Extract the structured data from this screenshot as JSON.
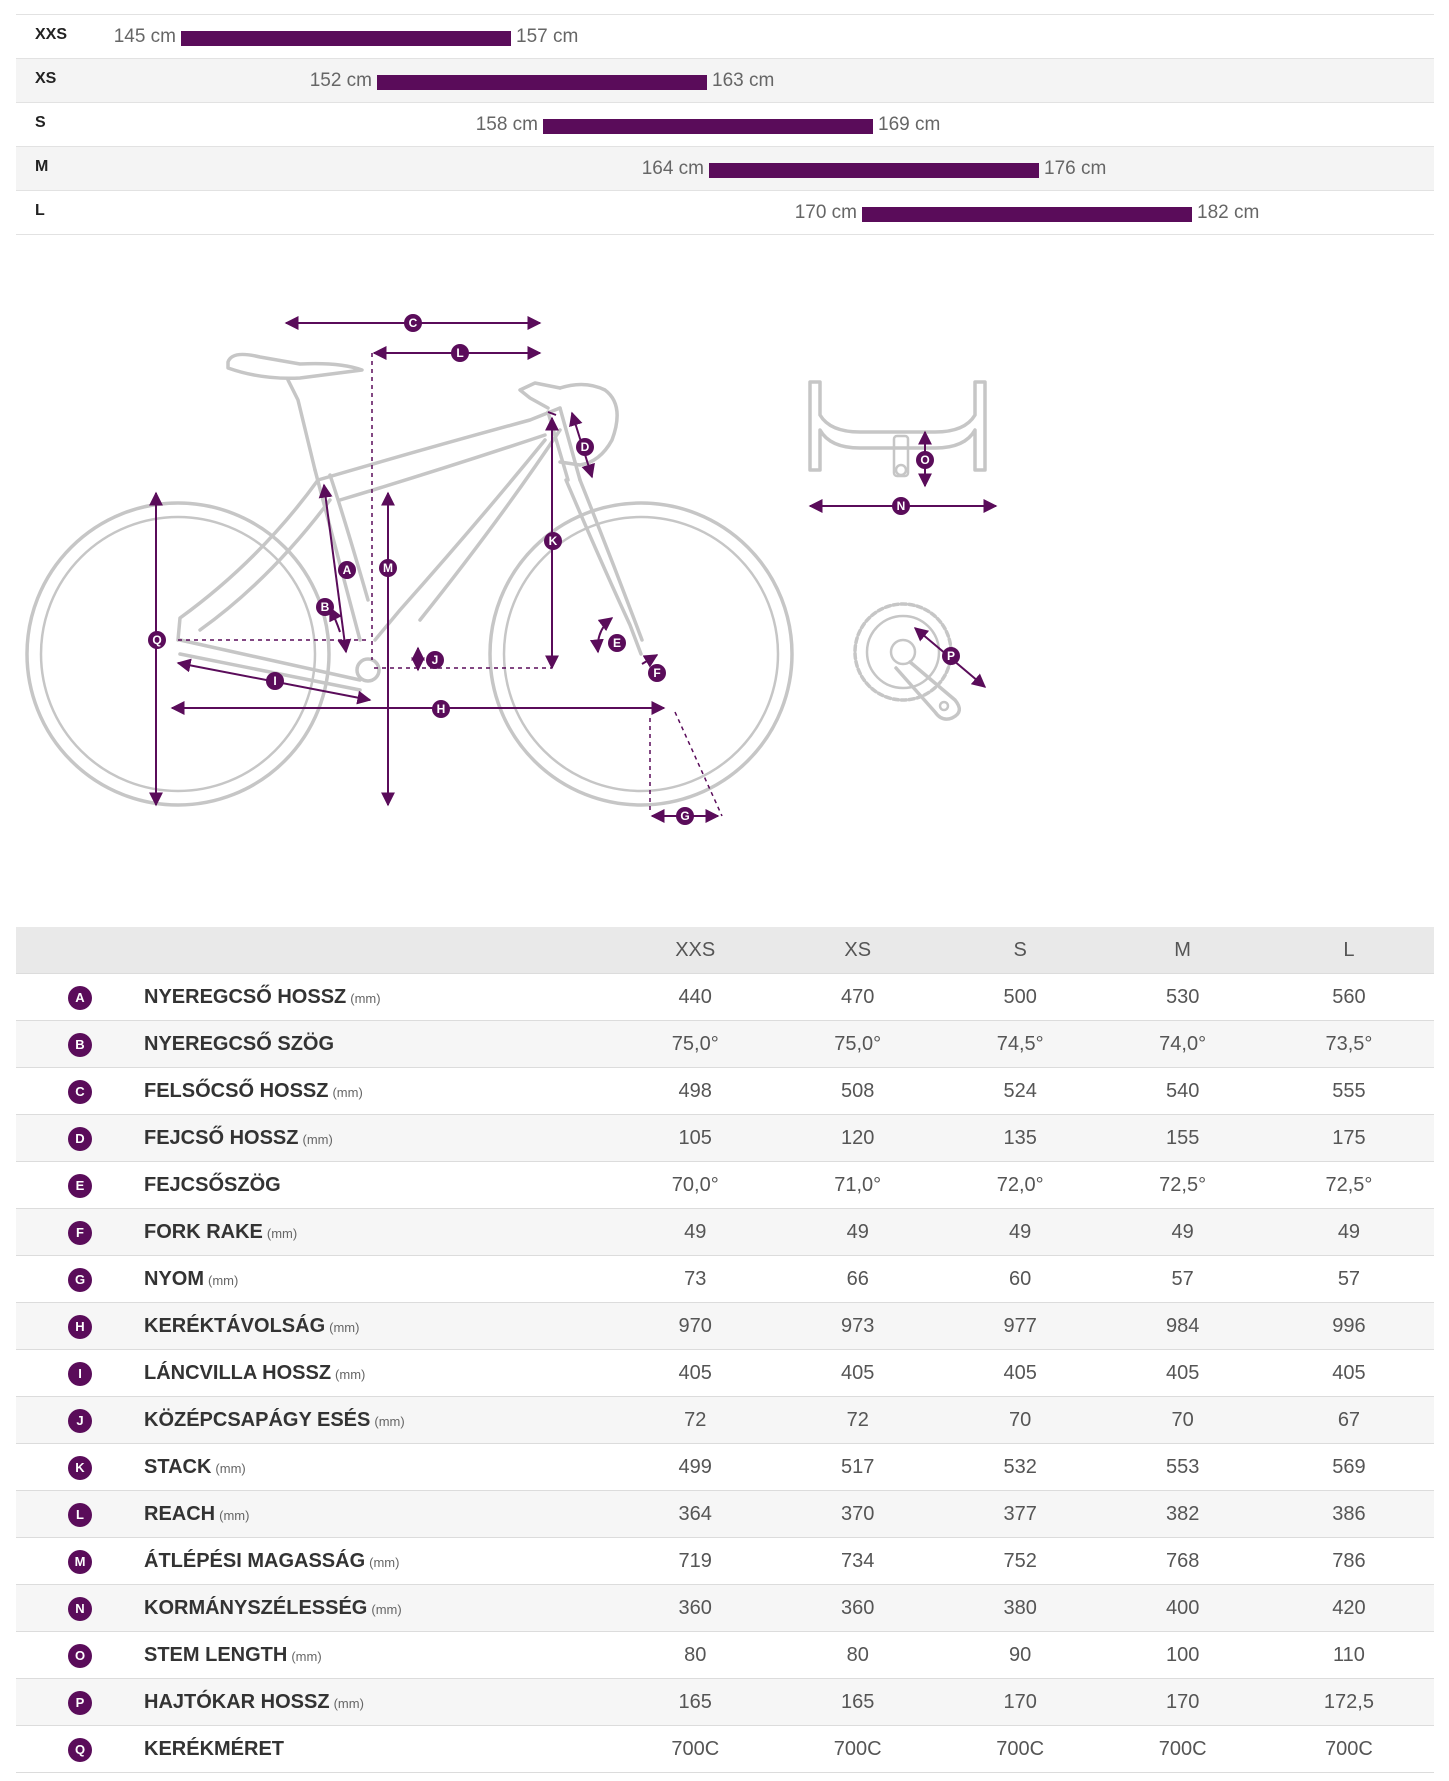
{
  "size_chart": [
    {
      "size": "XXS",
      "min_label": "145 cm",
      "max_label": "157 cm",
      "min_cm": 145,
      "max_cm": 157
    },
    {
      "size": "XS",
      "min_label": "152 cm",
      "max_label": "163 cm",
      "min_cm": 152,
      "max_cm": 163
    },
    {
      "size": "S",
      "min_label": "158 cm",
      "max_label": "169 cm",
      "min_cm": 158,
      "max_cm": 169
    },
    {
      "size": "M",
      "min_label": "164 cm",
      "max_label": "176 cm",
      "min_cm": 164,
      "max_cm": 176
    },
    {
      "size": "L",
      "min_label": "170 cm",
      "max_label": "182 cm",
      "min_cm": 170,
      "max_cm": 182
    }
  ],
  "diagram": {
    "labels": [
      "A",
      "B",
      "C",
      "D",
      "E",
      "F",
      "G",
      "H",
      "I",
      "J",
      "K",
      "L",
      "M",
      "N",
      "O",
      "P",
      "Q"
    ],
    "icons": [
      "bicycle-frame-icon",
      "handlebar-icon",
      "crankset-icon"
    ]
  },
  "geometry": {
    "headers": [
      "XXS",
      "XS",
      "S",
      "M",
      "L"
    ],
    "rows": [
      {
        "badge": "A",
        "name": "NYEREGCSŐ HOSSZ",
        "unit": "(mm)",
        "values": [
          "440",
          "470",
          "500",
          "530",
          "560"
        ]
      },
      {
        "badge": "B",
        "name": "NYEREGCSŐ SZÖG",
        "unit": "",
        "values": [
          "75,0°",
          "75,0°",
          "74,5°",
          "74,0°",
          "73,5°"
        ]
      },
      {
        "badge": "C",
        "name": "FELSŐCSŐ HOSSZ",
        "unit": "(mm)",
        "values": [
          "498",
          "508",
          "524",
          "540",
          "555"
        ]
      },
      {
        "badge": "D",
        "name": "FEJCSŐ HOSSZ",
        "unit": "(mm)",
        "values": [
          "105",
          "120",
          "135",
          "155",
          "175"
        ]
      },
      {
        "badge": "E",
        "name": "FEJCSŐSZÖG",
        "unit": "",
        "values": [
          "70,0°",
          "71,0°",
          "72,0°",
          "72,5°",
          "72,5°"
        ]
      },
      {
        "badge": "F",
        "name": "FORK RAKE",
        "unit": "(mm)",
        "values": [
          "49",
          "49",
          "49",
          "49",
          "49"
        ]
      },
      {
        "badge": "G",
        "name": "NYOM",
        "unit": "(mm)",
        "values": [
          "73",
          "66",
          "60",
          "57",
          "57"
        ]
      },
      {
        "badge": "H",
        "name": "KERÉKTÁVOLSÁG",
        "unit": "(mm)",
        "values": [
          "970",
          "973",
          "977",
          "984",
          "996"
        ]
      },
      {
        "badge": "I",
        "name": "LÁNCVILLA HOSSZ",
        "unit": "(mm)",
        "values": [
          "405",
          "405",
          "405",
          "405",
          "405"
        ]
      },
      {
        "badge": "J",
        "name": "KÖZÉPCSAPÁGY ESÉS",
        "unit": "(mm)",
        "values": [
          "72",
          "72",
          "70",
          "70",
          "67"
        ]
      },
      {
        "badge": "K",
        "name": "STACK",
        "unit": "(mm)",
        "values": [
          "499",
          "517",
          "532",
          "553",
          "569"
        ]
      },
      {
        "badge": "L",
        "name": "REACH",
        "unit": "(mm)",
        "values": [
          "364",
          "370",
          "377",
          "382",
          "386"
        ]
      },
      {
        "badge": "M",
        "name": "ÁTLÉPÉSI MAGASSÁG",
        "unit": "(mm)",
        "values": [
          "719",
          "734",
          "752",
          "768",
          "786"
        ]
      },
      {
        "badge": "N",
        "name": "KORMÁNYSZÉLESSÉG",
        "unit": "(mm)",
        "values": [
          "360",
          "360",
          "380",
          "400",
          "420"
        ]
      },
      {
        "badge": "O",
        "name": "STEM LENGTH",
        "unit": "(mm)",
        "values": [
          "80",
          "80",
          "90",
          "100",
          "110"
        ]
      },
      {
        "badge": "P",
        "name": "HAJTÓKAR HOSSZ",
        "unit": "(mm)",
        "values": [
          "165",
          "165",
          "170",
          "170",
          "172,5"
        ]
      },
      {
        "badge": "Q",
        "name": "KERÉKMÉRET",
        "unit": "",
        "values": [
          "700C",
          "700C",
          "700C",
          "700C",
          "700C"
        ]
      }
    ]
  },
  "colors": {
    "accent": "#5a0c5a",
    "frame": "#c6c6c6",
    "row_alt": "#f4f4f4",
    "header_bg": "#e9e9e9"
  }
}
